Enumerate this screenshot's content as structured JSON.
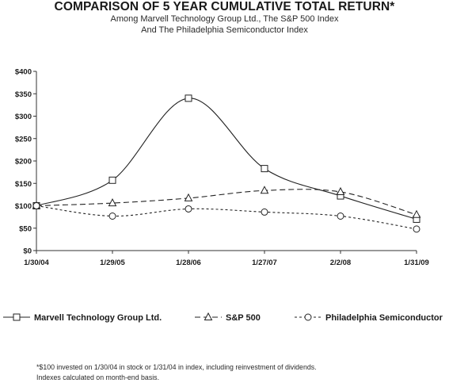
{
  "header": {
    "title": "COMPARISON OF 5 YEAR CUMULATIVE TOTAL RETURN*",
    "subtitle_line1": "Among Marvell Technology Group Ltd., The S&P 500 Index",
    "subtitle_line2": "And The Philadelphia Semiconductor Index"
  },
  "footnote": {
    "line1": "*$100 invested on 1/30/04 in stock or 1/31/04 in index, including reinvestment of dividends.",
    "line2": "Indexes calculated on month-end basis."
  },
  "chart_data": {
    "type": "line",
    "title": "COMPARISON OF 5 YEAR CUMULATIVE TOTAL RETURN*",
    "x": [
      "1/30/04",
      "1/29/05",
      "1/28/06",
      "1/27/07",
      "2/2/08",
      "1/31/09"
    ],
    "y_tick_labels": [
      "$0",
      "$50",
      "$100",
      "$150",
      "$200",
      "$250",
      "$300",
      "$350",
      "$400"
    ],
    "ylim": [
      0,
      400
    ],
    "y_step": 50,
    "grid": false,
    "legend_position": "bottom",
    "series": [
      {
        "name": "Marvell Technology Group Ltd.",
        "values": [
          100,
          157,
          340,
          183,
          122,
          70
        ],
        "marker": "square",
        "dash": "solid"
      },
      {
        "name": "S&P 500",
        "values": [
          100,
          106,
          117,
          134,
          131,
          80
        ],
        "marker": "triangle",
        "dash": "dashed"
      },
      {
        "name": "Philadelphia Semiconductor",
        "values": [
          100,
          77,
          93,
          86,
          77,
          48
        ],
        "marker": "circle",
        "dash": "dotted"
      }
    ]
  }
}
